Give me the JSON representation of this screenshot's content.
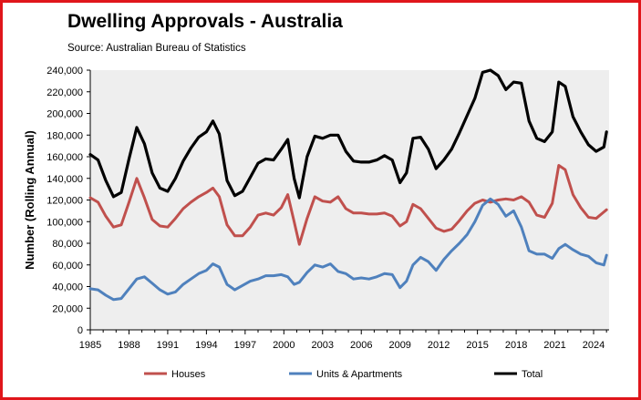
{
  "chart_data": {
    "type": "line",
    "title": "Dwelling Approvals - Australia",
    "subtitle": "Source: Australian Bureau of Statistics",
    "ylabel": "Number (Rolling Annual)",
    "xlabel": "",
    "xlim": [
      1985,
      2025.2
    ],
    "ylim": [
      0,
      240000
    ],
    "yticks": [
      0,
      20000,
      40000,
      60000,
      80000,
      100000,
      120000,
      140000,
      160000,
      180000,
      200000,
      220000,
      240000
    ],
    "ytick_labels": [
      "0",
      "20,000",
      "40,000",
      "60,000",
      "80,000",
      "100,000",
      "120,000",
      "140,000",
      "160,000",
      "180,000",
      "200,000",
      "220,000",
      "240,000"
    ],
    "xticks": [
      1985,
      1988,
      1991,
      1994,
      1997,
      2000,
      2003,
      2006,
      2009,
      2012,
      2015,
      2018,
      2021,
      2024
    ],
    "xtick_labels": [
      "1985",
      "1988",
      "1991",
      "1994",
      "1997",
      "2000",
      "2003",
      "2006",
      "2009",
      "2012",
      "2015",
      "2018",
      "2021",
      "2024"
    ],
    "grid": false,
    "legend_position": "bottom",
    "plot_background": "#eeeeee",
    "series": [
      {
        "name": "Houses",
        "color": "#c0504d",
        "x": [
          1985,
          1985.6,
          1986.2,
          1986.8,
          1987.4,
          1988,
          1988.6,
          1989.2,
          1989.8,
          1990.4,
          1991,
          1991.6,
          1992.2,
          1992.8,
          1993.4,
          1994,
          1994.5,
          1995,
          1995.6,
          1996.2,
          1996.8,
          1997.4,
          1998,
          1998.6,
          1999.2,
          1999.8,
          2000.3,
          2000.8,
          2001.2,
          2001.8,
          2002.4,
          2003,
          2003.6,
          2004.2,
          2004.8,
          2005.4,
          2006,
          2006.6,
          2007.2,
          2007.8,
          2008.4,
          2009,
          2009.5,
          2010,
          2010.6,
          2011.2,
          2011.8,
          2012.4,
          2013,
          2013.6,
          2014.2,
          2014.8,
          2015.4,
          2016,
          2016.6,
          2017.2,
          2017.8,
          2018.4,
          2019,
          2019.6,
          2020.2,
          2020.8,
          2021.3,
          2021.8,
          2022.4,
          2023,
          2023.6,
          2024.2,
          2024.8,
          2025
        ],
        "y": [
          122000,
          118000,
          105000,
          95000,
          97000,
          118000,
          140000,
          122000,
          102000,
          96000,
          95000,
          103000,
          112000,
          118000,
          123000,
          127000,
          131000,
          123000,
          97000,
          87000,
          87000,
          95000,
          106000,
          108000,
          106000,
          113000,
          125000,
          100000,
          79000,
          103000,
          123000,
          119000,
          118000,
          123000,
          112000,
          108000,
          108000,
          107000,
          107000,
          108000,
          105000,
          96000,
          100000,
          116000,
          112000,
          103000,
          94000,
          91000,
          93000,
          101000,
          110000,
          117000,
          120000,
          118000,
          120000,
          121000,
          120000,
          123000,
          118000,
          106000,
          104000,
          117000,
          152000,
          148000,
          125000,
          113000,
          104000,
          103000,
          109000,
          111000
        ]
      },
      {
        "name": "Units & Apartments",
        "color": "#4f81bd",
        "x": [
          1985,
          1985.6,
          1986.2,
          1986.8,
          1987.4,
          1988,
          1988.6,
          1989.2,
          1989.8,
          1990.4,
          1991,
          1991.6,
          1992.2,
          1992.8,
          1993.4,
          1994,
          1994.5,
          1995,
          1995.6,
          1996.2,
          1996.8,
          1997.4,
          1998,
          1998.6,
          1999.2,
          1999.8,
          2000.3,
          2000.8,
          2001.2,
          2001.8,
          2002.4,
          2003,
          2003.6,
          2004.2,
          2004.8,
          2005.4,
          2006,
          2006.6,
          2007.2,
          2007.8,
          2008.4,
          2009,
          2009.5,
          2010,
          2010.6,
          2011.2,
          2011.8,
          2012.4,
          2013,
          2013.6,
          2014.2,
          2014.8,
          2015.4,
          2016,
          2016.6,
          2017.2,
          2017.8,
          2018.4,
          2019,
          2019.6,
          2020.2,
          2020.8,
          2021.3,
          2021.8,
          2022.4,
          2023,
          2023.6,
          2024.2,
          2024.8,
          2025
        ],
        "y": [
          38000,
          37000,
          32000,
          28000,
          29000,
          38000,
          47000,
          49000,
          43000,
          37000,
          33000,
          35000,
          42000,
          47000,
          52000,
          55000,
          61000,
          58000,
          42000,
          37000,
          41000,
          45000,
          47000,
          50000,
          50000,
          51000,
          49000,
          42000,
          44000,
          53000,
          60000,
          58000,
          61000,
          54000,
          52000,
          47000,
          48000,
          47000,
          49000,
          52000,
          51000,
          39000,
          45000,
          60000,
          67000,
          63000,
          55000,
          65000,
          73000,
          80000,
          88000,
          100000,
          115000,
          121000,
          116000,
          105000,
          110000,
          95000,
          73000,
          70000,
          70000,
          66000,
          75000,
          79000,
          74000,
          70000,
          68000,
          62000,
          60000,
          69000
        ]
      },
      {
        "name": "Total",
        "color": "#000000",
        "x": [
          1985,
          1985.6,
          1986.2,
          1986.8,
          1987.4,
          1988,
          1988.6,
          1989.2,
          1989.8,
          1990.4,
          1991,
          1991.6,
          1992.2,
          1992.8,
          1993.4,
          1994,
          1994.5,
          1995,
          1995.6,
          1996.2,
          1996.8,
          1997.4,
          1998,
          1998.6,
          1999.2,
          1999.8,
          2000.3,
          2000.8,
          2001.2,
          2001.8,
          2002.4,
          2003,
          2003.6,
          2004.2,
          2004.8,
          2005.4,
          2006,
          2006.6,
          2007.2,
          2007.8,
          2008.4,
          2009,
          2009.5,
          2010,
          2010.6,
          2011.2,
          2011.8,
          2012.4,
          2013,
          2013.6,
          2014.2,
          2014.8,
          2015.4,
          2016,
          2016.6,
          2017.2,
          2017.8,
          2018.4,
          2019,
          2019.6,
          2020.2,
          2020.8,
          2021.3,
          2021.8,
          2022.4,
          2023,
          2023.6,
          2024.2,
          2024.8,
          2025
        ],
        "y": [
          162000,
          157000,
          138000,
          123000,
          127000,
          158000,
          187000,
          172000,
          145000,
          131000,
          128000,
          140000,
          156000,
          168000,
          178000,
          183000,
          193000,
          181000,
          138000,
          124000,
          128000,
          141000,
          154000,
          158000,
          157000,
          167000,
          176000,
          140000,
          122000,
          160000,
          179000,
          177000,
          180000,
          180000,
          165000,
          156000,
          155000,
          155000,
          157000,
          161000,
          157000,
          136000,
          145000,
          177000,
          178000,
          167000,
          149000,
          157000,
          167000,
          182000,
          198000,
          214000,
          238000,
          240000,
          235000,
          222000,
          229000,
          228000,
          193000,
          177000,
          174000,
          183000,
          229000,
          225000,
          197000,
          183000,
          171000,
          165000,
          169000,
          183000
        ]
      }
    ]
  }
}
